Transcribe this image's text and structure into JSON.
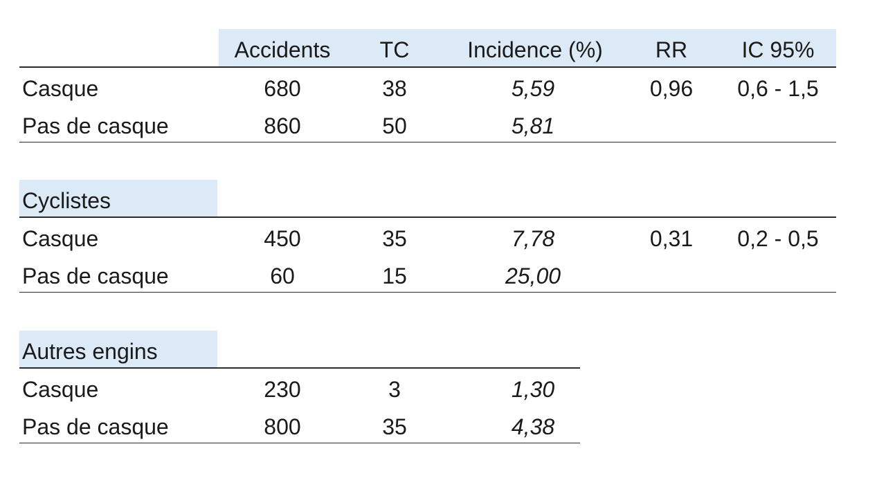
{
  "header": {
    "accidents": "Accidents",
    "tc": "TC",
    "incidence": "Incidence  (%)",
    "rr": "RR",
    "ic": "IC 95%"
  },
  "sections": [
    {
      "title": "",
      "rows": [
        {
          "label": "Casque",
          "accidents": "680",
          "tc": "38",
          "incidence": "5,59",
          "rr": "0,96",
          "ic": "0,6 -  1,5"
        },
        {
          "label": "Pas de casque",
          "accidents": "860",
          "tc": "50",
          "incidence": "5,81",
          "rr": "",
          "ic": ""
        }
      ]
    },
    {
      "title": "Cyclistes",
      "rows": [
        {
          "label": "Casque",
          "accidents": "450",
          "tc": "35",
          "incidence": "7,78",
          "rr": "0,31",
          "ic": "0,2 -  0,5"
        },
        {
          "label": "Pas de casque",
          "accidents": "60",
          "tc": "15",
          "incidence": "25,00",
          "rr": "",
          "ic": ""
        }
      ]
    },
    {
      "title": "Autres engins",
      "rows": [
        {
          "label": "Casque",
          "accidents": "230",
          "tc": "3",
          "incidence": "1,30"
        },
        {
          "label": "Pas de casque",
          "accidents": "800",
          "tc": "35",
          "incidence": "4,38"
        }
      ]
    }
  ],
  "colors": {
    "header_band": "#dce9f6",
    "rule": "#2b2b2b"
  }
}
